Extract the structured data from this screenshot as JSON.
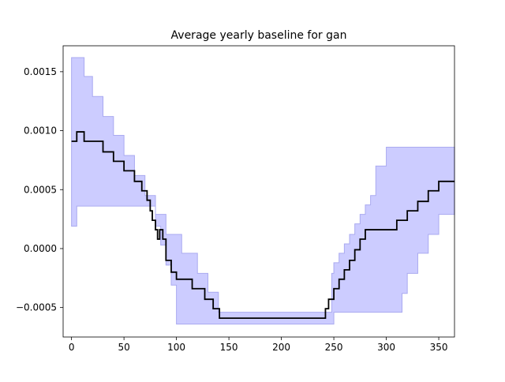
{
  "chart_data": {
    "type": "line",
    "title": "Average yearly baseline for gan",
    "xlabel": "",
    "ylabel": "",
    "xlim": [
      -8,
      365
    ],
    "ylim": [
      -0.00075,
      0.00172
    ],
    "x_ticks": [
      0,
      50,
      100,
      150,
      200,
      250,
      300,
      350
    ],
    "x_tick_labels": [
      "0",
      "50",
      "100",
      "150",
      "200",
      "250",
      "300",
      "350"
    ],
    "y_ticks": [
      -0.0005,
      0.0,
      0.0005,
      0.001,
      0.0015
    ],
    "y_tick_labels": [
      "−0.0005",
      "0.0000",
      "0.0005",
      "0.0010",
      "0.0015"
    ],
    "grid": false,
    "colors": {
      "line": "#000000",
      "band_fill": "#ccccff",
      "band_edge": "#aaaaf0"
    },
    "series": [
      {
        "role": "mean",
        "step": true,
        "x": [
          0,
          3,
          5,
          12,
          20,
          30,
          40,
          50,
          60,
          67,
          72,
          75,
          77,
          80,
          82,
          84,
          87,
          90,
          95,
          100,
          105,
          110,
          115,
          120,
          127,
          135,
          141,
          151,
          160,
          170,
          180,
          190,
          200,
          210,
          220,
          230,
          242,
          245,
          250,
          255,
          260,
          265,
          270,
          275,
          280,
          285,
          290,
          300,
          310,
          316,
          320,
          330,
          340,
          350,
          360,
          365
        ],
        "y": [
          0.00091,
          0.00091,
          0.00099,
          0.00091,
          0.00091,
          0.00082,
          0.00074,
          0.00066,
          0.00057,
          0.00049,
          0.00041,
          0.00032,
          0.00024,
          0.00016,
          8e-05,
          0.00016,
          8e-05,
          -0.0001,
          -0.0002,
          -0.00026,
          -0.00026,
          -0.00026,
          -0.00034,
          -0.00034,
          -0.00043,
          -0.00051,
          -0.00059,
          -0.00059,
          -0.00059,
          -0.00059,
          -0.00059,
          -0.00059,
          -0.00059,
          -0.00059,
          -0.00059,
          -0.00059,
          -0.00051,
          -0.00043,
          -0.00034,
          -0.00026,
          -0.00018,
          -0.0001,
          -1e-05,
          8e-05,
          0.00016,
          0.00016,
          0.00016,
          0.00016,
          0.00024,
          0.00024,
          0.00032,
          0.0004,
          0.00049,
          0.00057,
          0.00057,
          0.00057
        ]
      },
      {
        "role": "upper",
        "step": true,
        "x": [
          0,
          12,
          20,
          30,
          40,
          50,
          60,
          70,
          80,
          90,
          100,
          105,
          110,
          120,
          130,
          140,
          150,
          242,
          248,
          250,
          255,
          260,
          265,
          270,
          275,
          280,
          285,
          290,
          300,
          310,
          320,
          330,
          340,
          350,
          365
        ],
        "y": [
          0.00162,
          0.00146,
          0.00129,
          0.00112,
          0.00096,
          0.00079,
          0.00062,
          0.00045,
          0.00029,
          0.00012,
          0.00012,
          -4e-05,
          -4e-05,
          -0.00021,
          -0.00037,
          -0.00054,
          -0.00054,
          -0.00054,
          -0.00021,
          -0.00012,
          -4e-05,
          4e-05,
          0.00012,
          0.00021,
          0.00029,
          0.00037,
          0.00045,
          0.0007,
          0.00086,
          0.00086,
          0.00086,
          0.00086,
          0.00086,
          0.00086,
          0.00086
        ]
      },
      {
        "role": "lower",
        "step": true,
        "x": [
          0,
          3,
          5,
          20,
          40,
          60,
          75,
          80,
          85,
          90,
          95,
          100,
          110,
          120,
          130,
          140,
          150,
          200,
          242,
          250,
          260,
          270,
          280,
          290,
          300,
          310,
          315,
          320,
          330,
          340,
          350,
          365
        ],
        "y": [
          0.00019,
          0.00019,
          0.00036,
          0.00036,
          0.00036,
          0.00036,
          0.00036,
          0.00019,
          3e-05,
          -0.00014,
          -0.00031,
          -0.00064,
          -0.00064,
          -0.00064,
          -0.00064,
          -0.00064,
          -0.00064,
          -0.00064,
          -0.00064,
          -0.00054,
          -0.00054,
          -0.00054,
          -0.00054,
          -0.00054,
          -0.00054,
          -0.00054,
          -0.00038,
          -0.00021,
          -4e-05,
          0.00012,
          0.00029,
          0.00029
        ]
      }
    ]
  }
}
